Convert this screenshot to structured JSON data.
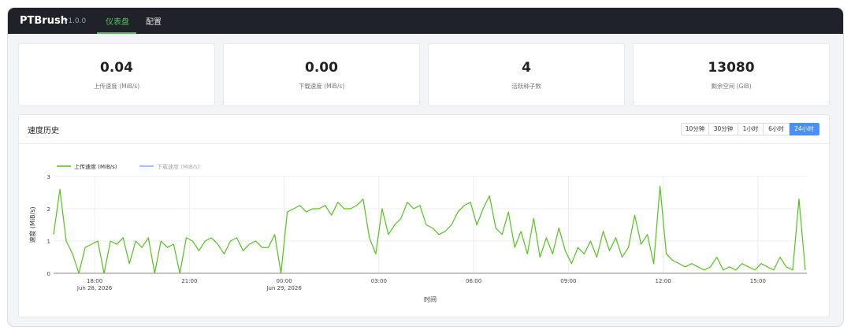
{
  "app": {
    "brand": "PTBrush",
    "version": "v1.0.0"
  },
  "nav": [
    {
      "label": "仪表盘",
      "active": true
    },
    {
      "label": "配置",
      "active": false
    }
  ],
  "stats": [
    {
      "value": "0.04",
      "label": "上传速度 (MiB/s)"
    },
    {
      "value": "0.00",
      "label": "下载速度 (MiB/s)"
    },
    {
      "value": "4",
      "label": "活跃种子数"
    },
    {
      "value": "13080",
      "label": "剩余空间 (GiB)"
    }
  ],
  "panel": {
    "title": "速度历史",
    "ranges": [
      {
        "label": "10分钟",
        "active": false
      },
      {
        "label": "30分钟",
        "active": false
      },
      {
        "label": "1小时",
        "active": false
      },
      {
        "label": "6小时",
        "active": false
      },
      {
        "label": "24小时",
        "active": true
      }
    ]
  },
  "chart_data": {
    "type": "line",
    "xlabel": "时间",
    "ylabel": "速度 (MiB/s)",
    "ylim": [
      0,
      3
    ],
    "yticks": [
      "0",
      "1",
      "2",
      "3"
    ],
    "xlim": [
      16.7,
      40.55
    ],
    "xticks": [
      {
        "x": 18,
        "label": "18:00",
        "sub": "Jun 28, 2026"
      },
      {
        "x": 21,
        "label": "21:00",
        "sub": ""
      },
      {
        "x": 24,
        "label": "00:00",
        "sub": "Jun 29, 2026"
      },
      {
        "x": 27,
        "label": "03:00",
        "sub": ""
      },
      {
        "x": 30,
        "label": "06:00",
        "sub": ""
      },
      {
        "x": 33,
        "label": "09:00",
        "sub": ""
      },
      {
        "x": 36,
        "label": "12:00",
        "sub": ""
      },
      {
        "x": 39,
        "label": "15:00",
        "sub": ""
      }
    ],
    "grid": true,
    "legend_position": "top-left",
    "series": [
      {
        "name": "上传速度 (MiB/s)",
        "color": "#52c41a",
        "hidden": false,
        "x": [
          16.7,
          16.9,
          17.1,
          17.3,
          17.5,
          17.7,
          17.9,
          18.1,
          18.3,
          18.5,
          18.7,
          18.9,
          19.1,
          19.3,
          19.5,
          19.7,
          19.9,
          20.1,
          20.3,
          20.5,
          20.7,
          20.9,
          21.1,
          21.3,
          21.5,
          21.7,
          21.9,
          22.1,
          22.3,
          22.5,
          22.7,
          22.9,
          23.1,
          23.3,
          23.5,
          23.7,
          23.9,
          24.1,
          24.3,
          24.5,
          24.7,
          24.9,
          25.1,
          25.3,
          25.5,
          25.7,
          25.9,
          26.1,
          26.3,
          26.5,
          26.7,
          26.9,
          27.1,
          27.3,
          27.5,
          27.7,
          27.9,
          28.1,
          28.3,
          28.5,
          28.7,
          28.9,
          29.1,
          29.3,
          29.5,
          29.7,
          29.9,
          30.1,
          30.3,
          30.5,
          30.7,
          30.9,
          31.1,
          31.3,
          31.5,
          31.7,
          31.9,
          32.1,
          32.3,
          32.5,
          32.7,
          32.9,
          33.1,
          33.3,
          33.5,
          33.7,
          33.9,
          34.1,
          34.3,
          34.5,
          34.7,
          34.9,
          35.1,
          35.3,
          35.5,
          35.7,
          35.9,
          36.1,
          36.3,
          36.5,
          36.7,
          36.9,
          37.1,
          37.3,
          37.5,
          37.7,
          37.9,
          38.1,
          38.3,
          38.5,
          38.7,
          38.9,
          39.1,
          39.3,
          39.5,
          39.7,
          39.9,
          40.1,
          40.3,
          40.5
        ],
        "y": [
          1.2,
          2.6,
          1.0,
          0.6,
          0.0,
          0.8,
          0.9,
          1.0,
          0.0,
          1.0,
          0.9,
          1.1,
          0.3,
          1.0,
          0.8,
          1.1,
          0.0,
          1.0,
          0.8,
          0.9,
          0.0,
          1.1,
          1.0,
          0.7,
          1.0,
          1.1,
          0.9,
          0.6,
          1.0,
          1.1,
          0.7,
          0.9,
          1.0,
          0.8,
          0.8,
          1.2,
          0.0,
          1.9,
          2.0,
          2.1,
          1.9,
          2.0,
          2.0,
          2.1,
          1.8,
          2.2,
          2.0,
          2.0,
          2.1,
          2.3,
          1.1,
          0.6,
          2.0,
          1.2,
          1.5,
          1.7,
          2.2,
          2.0,
          2.1,
          1.5,
          1.4,
          1.2,
          1.3,
          1.5,
          1.9,
          2.1,
          2.2,
          1.5,
          2.0,
          2.4,
          1.4,
          1.2,
          1.9,
          0.8,
          1.3,
          0.6,
          1.7,
          0.5,
          1.1,
          0.6,
          1.4,
          0.7,
          0.3,
          0.8,
          0.6,
          1.0,
          0.5,
          1.3,
          0.7,
          1.1,
          0.5,
          0.8,
          1.8,
          0.9,
          1.2,
          0.3,
          2.7,
          0.6,
          0.4,
          0.3,
          0.2,
          0.3,
          0.2,
          0.1,
          0.2,
          0.5,
          0.1,
          0.2,
          0.1,
          0.3,
          0.2,
          0.1,
          0.3,
          0.2,
          0.1,
          0.5,
          0.2,
          0.1,
          2.3,
          0.1
        ]
      },
      {
        "name": "下载速度 (MiB/s)",
        "color": "#7fb2ef",
        "hidden": true,
        "x": [
          16.7,
          40.5
        ],
        "y": [
          0,
          0
        ]
      }
    ]
  }
}
